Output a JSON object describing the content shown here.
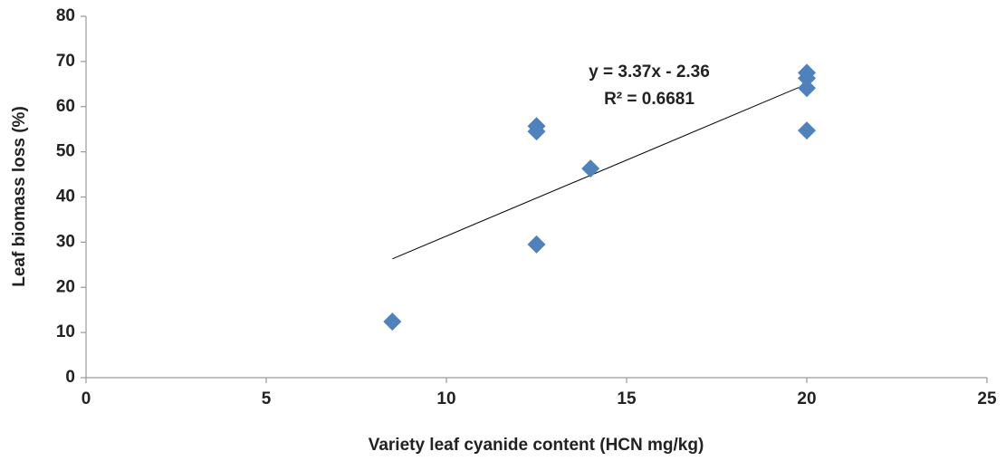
{
  "chart_data": {
    "type": "scatter",
    "x_label": "Variety leaf cyanide content (HCN mg/kg)",
    "y_label": "Leaf biomass loss (%)",
    "annotations": [
      "y = 3.37x - 2.36",
      "R² = 0.6681"
    ],
    "series": [
      {
        "color": "#4f81bd",
        "x": [
          8.5,
          12.5,
          12.5,
          12.5,
          14,
          20,
          20,
          20,
          20
        ],
        "values": [
          12.4,
          55.7,
          54.5,
          29.5,
          46.3,
          67.5,
          66.3,
          64.1,
          54.7
        ]
      }
    ],
    "trendline": {
      "color": "#000000",
      "x": [
        8.5,
        20
      ],
      "values": [
        26.3,
        65.0
      ]
    },
    "xlim": [
      0,
      25
    ],
    "xticks": [
      0,
      5,
      10,
      15,
      20,
      25
    ],
    "ylim": [
      0,
      80
    ],
    "yticks": [
      0,
      10,
      20,
      30,
      40,
      50,
      60,
      70,
      80
    ],
    "grid": false
  }
}
